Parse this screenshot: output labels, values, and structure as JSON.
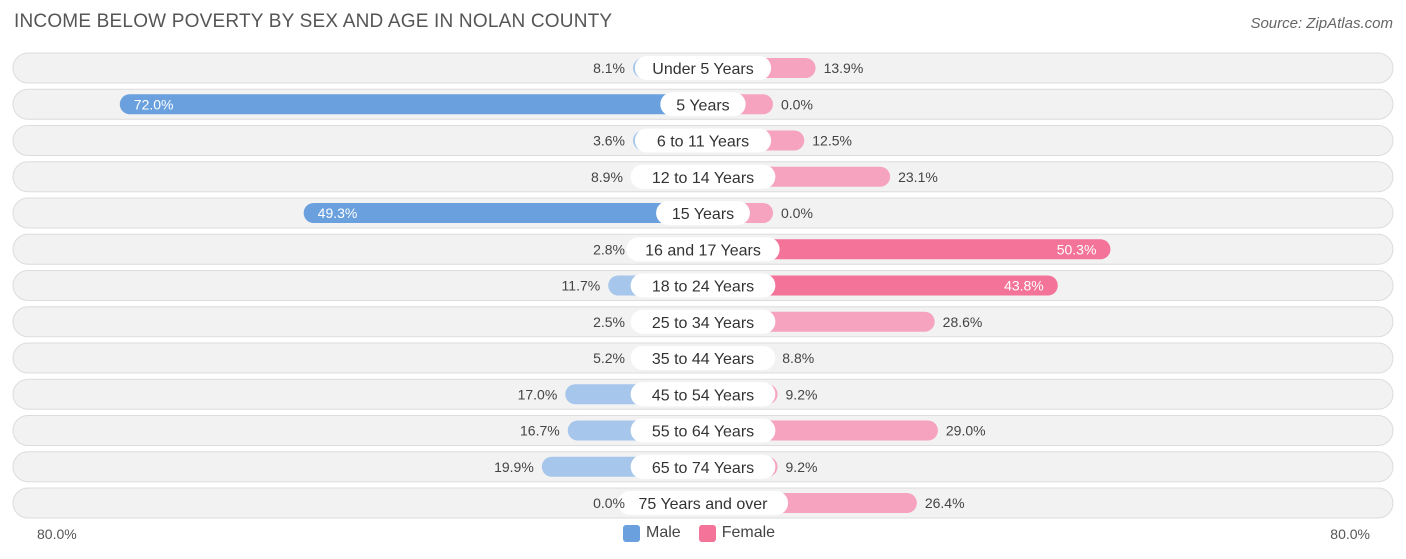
{
  "title": "INCOME BELOW POVERTY BY SEX AND AGE IN NOLAN COUNTY",
  "source": "Source: ZipAtlas.com",
  "colors": {
    "male_light": "#a7c6eb",
    "male_dark": "#6aa0de",
    "female_light": "#f5a3bf",
    "female_dark": "#f37399"
  },
  "legend": {
    "male": "Male",
    "female": "Female"
  },
  "axis": {
    "left_label": "80.0%",
    "right_label": "80.0%"
  },
  "chart_data": {
    "type": "bar",
    "orientation": "horizontal-diverging",
    "title": "INCOME BELOW POVERTY BY SEX AND AGE IN NOLAN COUNTY",
    "xlim": [
      0,
      80
    ],
    "categories": [
      "Under 5 Years",
      "5 Years",
      "6 to 11 Years",
      "12 to 14 Years",
      "15 Years",
      "16 and 17 Years",
      "18 to 24 Years",
      "25 to 34 Years",
      "35 to 44 Years",
      "45 to 54 Years",
      "55 to 64 Years",
      "65 to 74 Years",
      "75 Years and over"
    ],
    "series": [
      {
        "name": "Male",
        "values": [
          8.1,
          72.0,
          3.6,
          8.9,
          49.3,
          2.8,
          11.7,
          2.5,
          5.2,
          17.0,
          16.7,
          19.9,
          0.0
        ],
        "labels": [
          "8.1%",
          "72.0%",
          "3.6%",
          "8.9%",
          "49.3%",
          "2.8%",
          "11.7%",
          "2.5%",
          "5.2%",
          "17.0%",
          "16.7%",
          "19.9%",
          "0.0%"
        ]
      },
      {
        "name": "Female",
        "values": [
          13.9,
          0.0,
          12.5,
          23.1,
          0.0,
          50.3,
          43.8,
          28.6,
          8.8,
          9.2,
          29.0,
          9.2,
          26.4
        ],
        "labels": [
          "13.9%",
          "0.0%",
          "12.5%",
          "23.1%",
          "0.0%",
          "50.3%",
          "43.8%",
          "28.6%",
          "8.8%",
          "9.2%",
          "29.0%",
          "9.2%",
          "26.4%"
        ]
      }
    ]
  }
}
